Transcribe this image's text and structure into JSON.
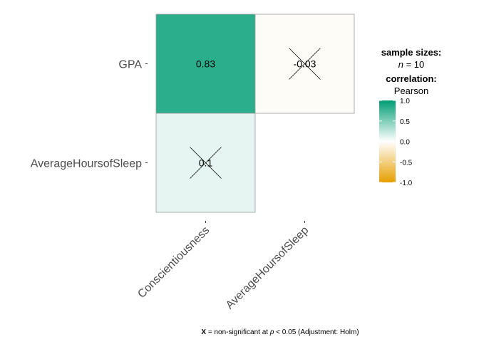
{
  "chart_data": {
    "type": "heatmap",
    "x_categories": [
      "Conscientiousness",
      "AverageHoursofSleep"
    ],
    "y_categories": [
      "GPA",
      "AverageHoursofSleep"
    ],
    "cells": [
      {
        "x": "Conscientiousness",
        "y": "GPA",
        "value": 0.83,
        "label": "0.83",
        "significant": true
      },
      {
        "x": "AverageHoursofSleep",
        "y": "GPA",
        "value": -0.03,
        "label": "-0.03",
        "significant": false
      },
      {
        "x": "Conscientiousness",
        "y": "AverageHoursofSleep",
        "value": 0.1,
        "label": "0.1",
        "significant": false
      }
    ],
    "color_scale": {
      "low": "#E69F00",
      "mid": "#FFFFFF",
      "high": "#009E73",
      "limits": [
        -1,
        1
      ]
    },
    "legend": {
      "sample_title": "sample sizes:",
      "n_label": "n",
      "n_value": "= 10",
      "corr_title": "correlation:",
      "corr_method": "Pearson",
      "ticks": [
        {
          "value": 1.0,
          "label": "1.0"
        },
        {
          "value": 0.5,
          "label": "0.5"
        },
        {
          "value": 0.0,
          "label": "0.0"
        },
        {
          "value": -0.5,
          "label": "-0.5"
        },
        {
          "value": -1.0,
          "label": "-1.0"
        }
      ],
      "placement": "right"
    },
    "caption": {
      "mark": "X",
      "text_1": " = non-significant at ",
      "p": "p",
      "text_2": " < 0.05 (Adjustment: Holm)"
    },
    "grid": false
  }
}
